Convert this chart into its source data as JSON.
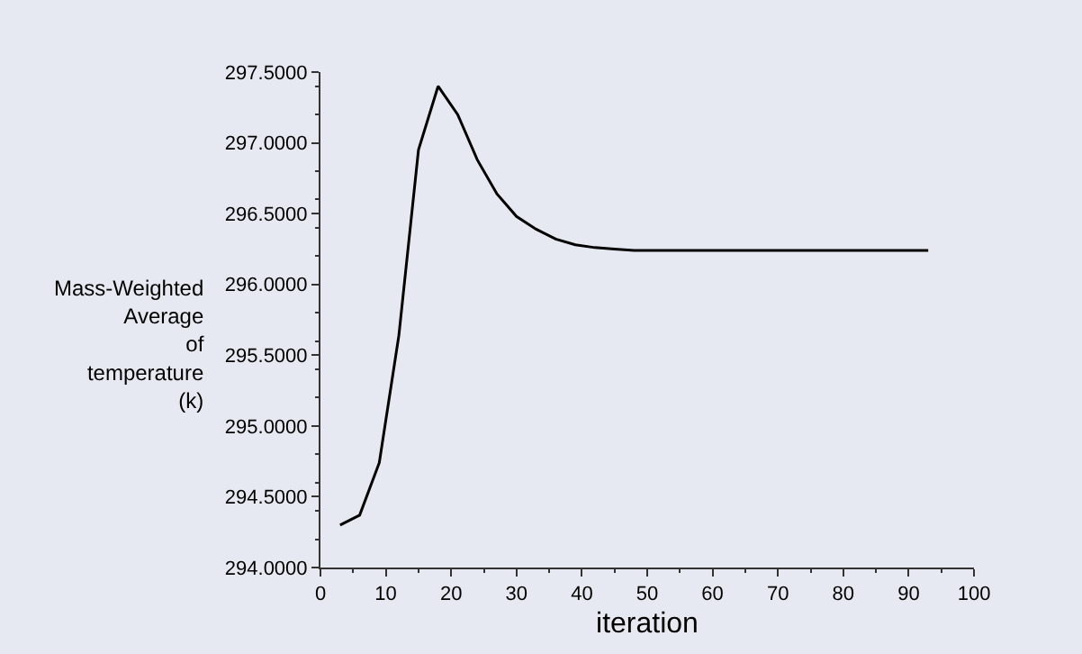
{
  "chart_data": {
    "type": "line",
    "xlabel": "iteration",
    "ylabel": "Mass-Weighted\nAverage\nof\ntemperature\n(k)",
    "x": [
      3,
      6,
      9,
      12,
      15,
      18,
      21,
      24,
      27,
      30,
      33,
      36,
      39,
      42,
      45,
      48,
      53,
      60,
      70,
      80,
      93
    ],
    "series": [
      {
        "color": "#000000",
        "values": [
          294.3,
          294.37,
          294.74,
          295.64,
          296.95,
          297.4,
          297.2,
          296.88,
          296.64,
          296.48,
          296.39,
          296.32,
          296.28,
          296.26,
          296.25,
          296.24,
          296.24,
          296.24,
          296.24,
          296.24,
          296.24
        ]
      }
    ],
    "xlim": [
      0,
      100
    ],
    "xticks": [
      0,
      10,
      20,
      30,
      40,
      50,
      60,
      70,
      80,
      90,
      100
    ],
    "ylim": [
      294,
      297.5
    ],
    "yticks": [
      {
        "value": 294,
        "label": "294.0000"
      },
      {
        "value": 294.5,
        "label": "294.5000"
      },
      {
        "value": 295,
        "label": "295.0000"
      },
      {
        "value": 295.5,
        "label": "295.5000"
      },
      {
        "value": 296,
        "label": "296.0000"
      },
      {
        "value": 296.5,
        "label": "296.5000"
      },
      {
        "value": 297,
        "label": "297.0000"
      },
      {
        "value": 297.5,
        "label": "297.5000"
      }
    ],
    "grid": false,
    "marker": "none",
    "line_style": "solid"
  }
}
